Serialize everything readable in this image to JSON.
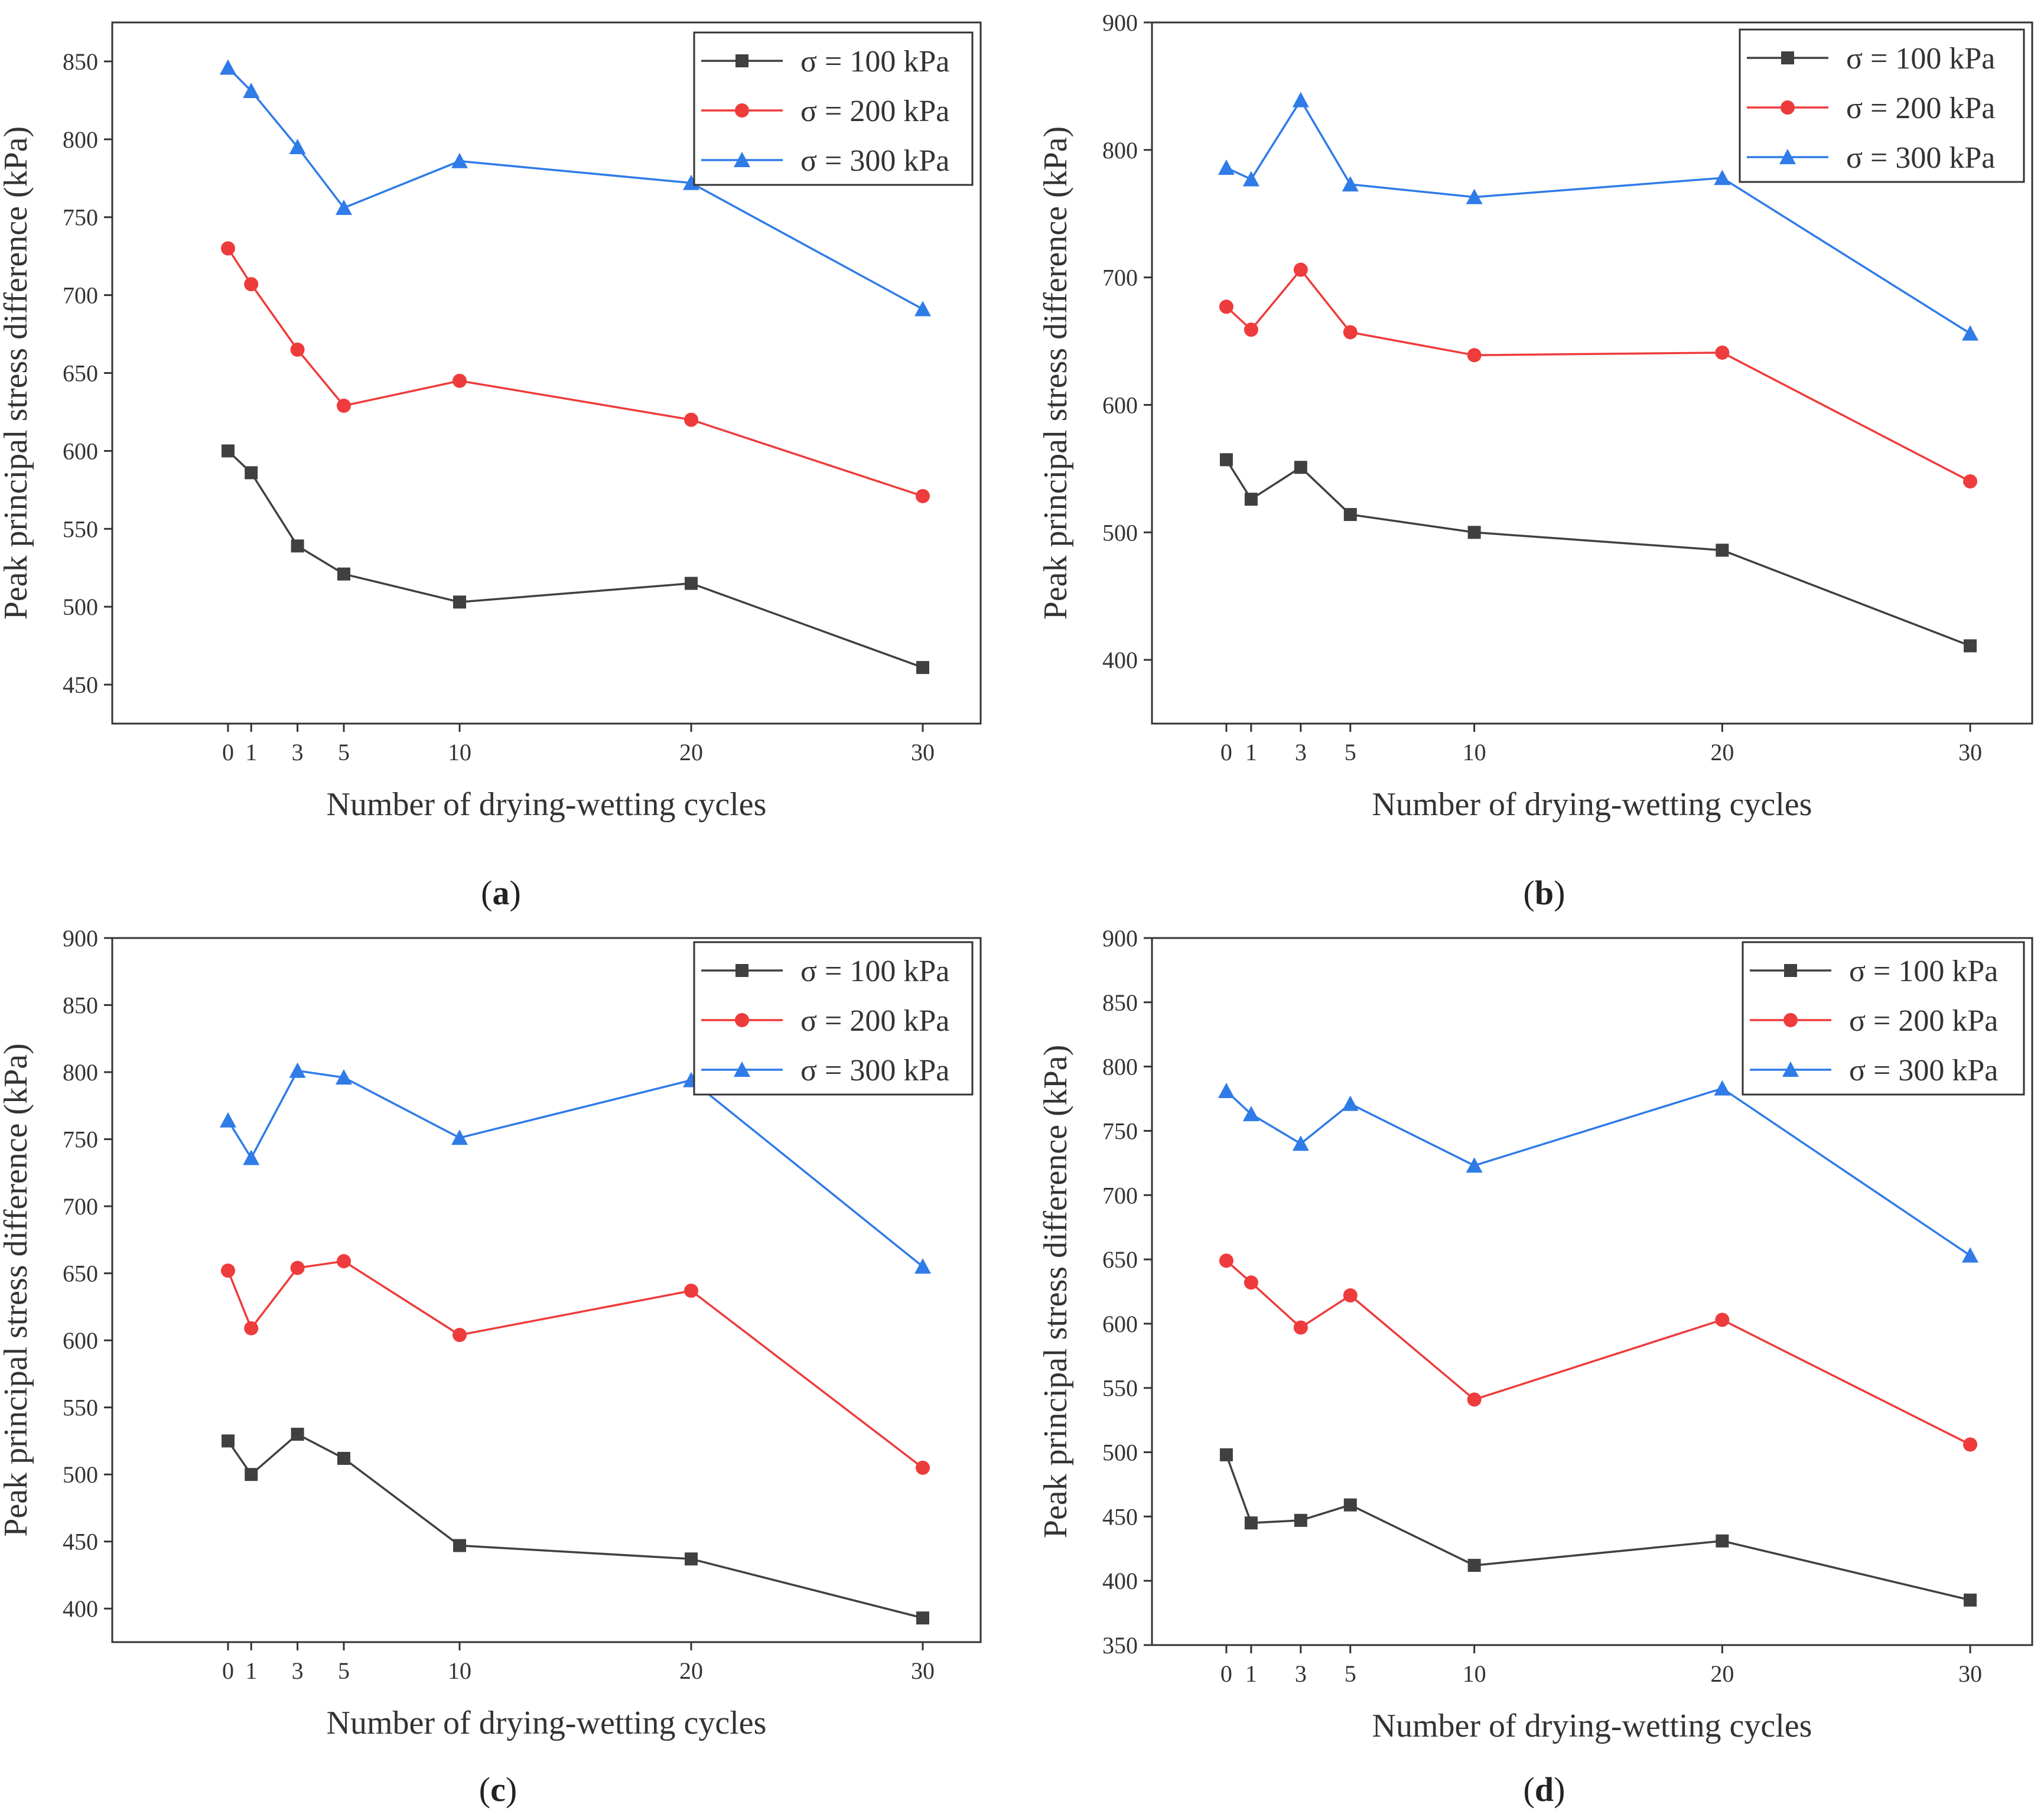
{
  "colors": {
    "s100": "#404040",
    "s200": "#ee3b3b",
    "s300": "#2f7be8",
    "axis": "#333333"
  },
  "chart_data": [
    {
      "type": "line",
      "panel_label": "a",
      "xlabel": "Number of drying-wetting cycles",
      "ylabel": "Peak principal stress difference (kPa)",
      "x": [
        0,
        1,
        3,
        5,
        10,
        20,
        30
      ],
      "xticks": [
        0,
        1,
        3,
        5,
        10,
        20,
        30
      ],
      "xlim": [
        -5,
        32.5
      ],
      "ylim": [
        425,
        875
      ],
      "yticks": [
        450,
        500,
        550,
        600,
        650,
        700,
        750,
        800,
        850
      ],
      "series": [
        {
          "name": "σ = 100 kPa",
          "marker": "square",
          "values": [
            600,
            586,
            539,
            521,
            503,
            515,
            461
          ]
        },
        {
          "name": "σ = 200 kPa",
          "marker": "circle",
          "values": [
            730,
            707,
            665,
            629,
            645,
            620,
            571
          ]
        },
        {
          "name": "σ = 300 kPa",
          "marker": "triangle",
          "values": [
            846,
            831,
            795,
            756,
            786,
            772,
            691
          ]
        }
      ]
    },
    {
      "type": "line",
      "panel_label": "b",
      "xlabel": "Number of drying-wetting cycles",
      "ylabel": "Peak principal stress difference (kPa)",
      "x": [
        0,
        1,
        3,
        5,
        10,
        20,
        30
      ],
      "xticks": [
        0,
        1,
        3,
        5,
        10,
        20,
        30
      ],
      "xlim": [
        -3,
        32.5
      ],
      "ylim": [
        350,
        900
      ],
      "yticks": [
        400,
        500,
        600,
        700,
        800,
        900
      ],
      "series": [
        {
          "name": "σ = 100 kPa",
          "marker": "square",
          "values": [
            557,
            526,
            551,
            514,
            500,
            486,
            411
          ]
        },
        {
          "name": "σ = 200 kPa",
          "marker": "circle",
          "values": [
            677,
            659,
            706,
            657,
            639,
            641,
            540
          ]
        },
        {
          "name": "σ = 300 kPa",
          "marker": "triangle",
          "values": [
            786,
            777,
            839,
            773,
            763,
            778,
            656
          ]
        }
      ]
    },
    {
      "type": "line",
      "panel_label": "c",
      "xlabel": "Number of drying-wetting cycles",
      "ylabel": "Peak principal stress difference (kPa)",
      "x": [
        0,
        1,
        3,
        5,
        10,
        20,
        30
      ],
      "xticks": [
        0,
        1,
        3,
        5,
        10,
        20,
        30
      ],
      "xlim": [
        -5,
        32.5
      ],
      "ylim": [
        375,
        900
      ],
      "yticks": [
        400,
        450,
        500,
        550,
        600,
        650,
        700,
        750,
        800,
        850,
        900
      ],
      "series": [
        {
          "name": "σ = 100 kPa",
          "marker": "square",
          "values": [
            525,
            500,
            530,
            512,
            447,
            437,
            393
          ]
        },
        {
          "name": "σ = 200 kPa",
          "marker": "circle",
          "values": [
            652,
            609,
            654,
            659,
            604,
            637,
            505
          ]
        },
        {
          "name": "σ = 300 kPa",
          "marker": "triangle",
          "values": [
            764,
            736,
            801,
            796,
            751,
            794,
            655
          ]
        }
      ]
    },
    {
      "type": "line",
      "panel_label": "d",
      "xlabel": "Number of drying-wetting cycles",
      "ylabel": "Peak principal stress difference (kPa)",
      "x": [
        0,
        1,
        3,
        5,
        10,
        20,
        30
      ],
      "xticks": [
        0,
        1,
        3,
        5,
        10,
        20,
        30
      ],
      "xlim": [
        -3,
        32.5
      ],
      "ylim": [
        350,
        900
      ],
      "yticks": [
        350,
        400,
        450,
        500,
        550,
        600,
        650,
        700,
        750,
        800,
        850,
        900
      ],
      "series": [
        {
          "name": "σ = 100 kPa",
          "marker": "square",
          "values": [
            498,
            445,
            447,
            459,
            412,
            431,
            385
          ]
        },
        {
          "name": "σ = 200 kPa",
          "marker": "circle",
          "values": [
            649,
            632,
            597,
            622,
            541,
            603,
            506
          ]
        },
        {
          "name": "σ = 300 kPa",
          "marker": "triangle",
          "values": [
            781,
            763,
            740,
            771,
            723,
            783,
            653
          ]
        }
      ]
    }
  ]
}
